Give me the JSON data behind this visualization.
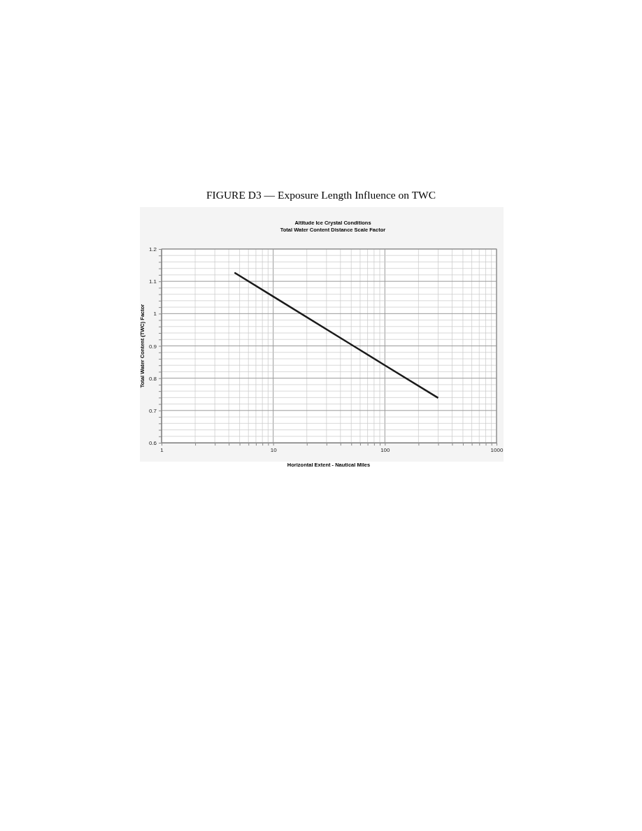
{
  "chart_data": {
    "type": "line",
    "title": "FIGURE D3 — Exposure Length Influence on TWC",
    "subtitle": "Altitude Ice Crystal Conditions\nTotal Water Content Distance Scale Factor",
    "xlabel": "Horizontal Extent - Nautical Miles",
    "ylabel": "Total Water Content (TWC) Factor",
    "log": "x",
    "grid": true,
    "marker": "none",
    "line_style": "solid",
    "xlim": [
      1,
      1000
    ],
    "ylim": [
      0.6,
      1.2
    ],
    "xticks": [
      1,
      {
        "value": 2,
        "label": null
      },
      {
        "value": 3,
        "label": null
      },
      {
        "value": 4,
        "label": null
      },
      {
        "value": 5,
        "label": null
      },
      {
        "value": 6,
        "label": null
      },
      {
        "value": 7,
        "label": null
      },
      {
        "value": 8,
        "label": null
      },
      {
        "value": 9,
        "label": null
      },
      10,
      {
        "value": 20,
        "label": null
      },
      {
        "value": 30,
        "label": null
      },
      {
        "value": 40,
        "label": null
      },
      {
        "value": 50,
        "label": null
      },
      {
        "value": 60,
        "label": null
      },
      {
        "value": 70,
        "label": null
      },
      {
        "value": 80,
        "label": null
      },
      {
        "value": 90,
        "label": null
      },
      100,
      {
        "value": 200,
        "label": null
      },
      {
        "value": 300,
        "label": null
      },
      {
        "value": 400,
        "label": null
      },
      {
        "value": 500,
        "label": null
      },
      {
        "value": 600,
        "label": null
      },
      {
        "value": 700,
        "label": null
      },
      {
        "value": 800,
        "label": null
      },
      {
        "value": 900,
        "label": null
      },
      1000
    ],
    "yticks": [
      0.6,
      {
        "value": 0.62,
        "label": null
      },
      {
        "value": 0.64,
        "label": null
      },
      {
        "value": 0.66,
        "label": null
      },
      {
        "value": 0.68,
        "label": null
      },
      0.7,
      {
        "value": 0.72,
        "label": null
      },
      {
        "value": 0.74,
        "label": null
      },
      {
        "value": 0.76,
        "label": null
      },
      {
        "value": 0.78,
        "label": null
      },
      0.8,
      {
        "value": 0.82,
        "label": null
      },
      {
        "value": 0.84,
        "label": null
      },
      {
        "value": 0.86,
        "label": null
      },
      {
        "value": 0.88,
        "label": null
      },
      0.9,
      {
        "value": 0.92,
        "label": null
      },
      {
        "value": 0.94,
        "label": null
      },
      {
        "value": 0.96,
        "label": null
      },
      {
        "value": 0.98,
        "label": null
      },
      1,
      {
        "value": 1.02,
        "label": null
      },
      {
        "value": 1.04,
        "label": null
      },
      {
        "value": 1.06,
        "label": null
      },
      {
        "value": 1.08,
        "label": null
      },
      1.1,
      {
        "value": 1.12,
        "label": null
      },
      {
        "value": 1.14,
        "label": null
      },
      {
        "value": 1.16,
        "label": null
      },
      {
        "value": 1.18,
        "label": null
      },
      1.2
    ],
    "x": [
      4.5,
      10,
      100,
      300
    ],
    "series": [
      {
        "color": "#1a1a1a",
        "values": [
          1.127,
          1.053,
          0.84,
          0.739
        ]
      }
    ]
  }
}
